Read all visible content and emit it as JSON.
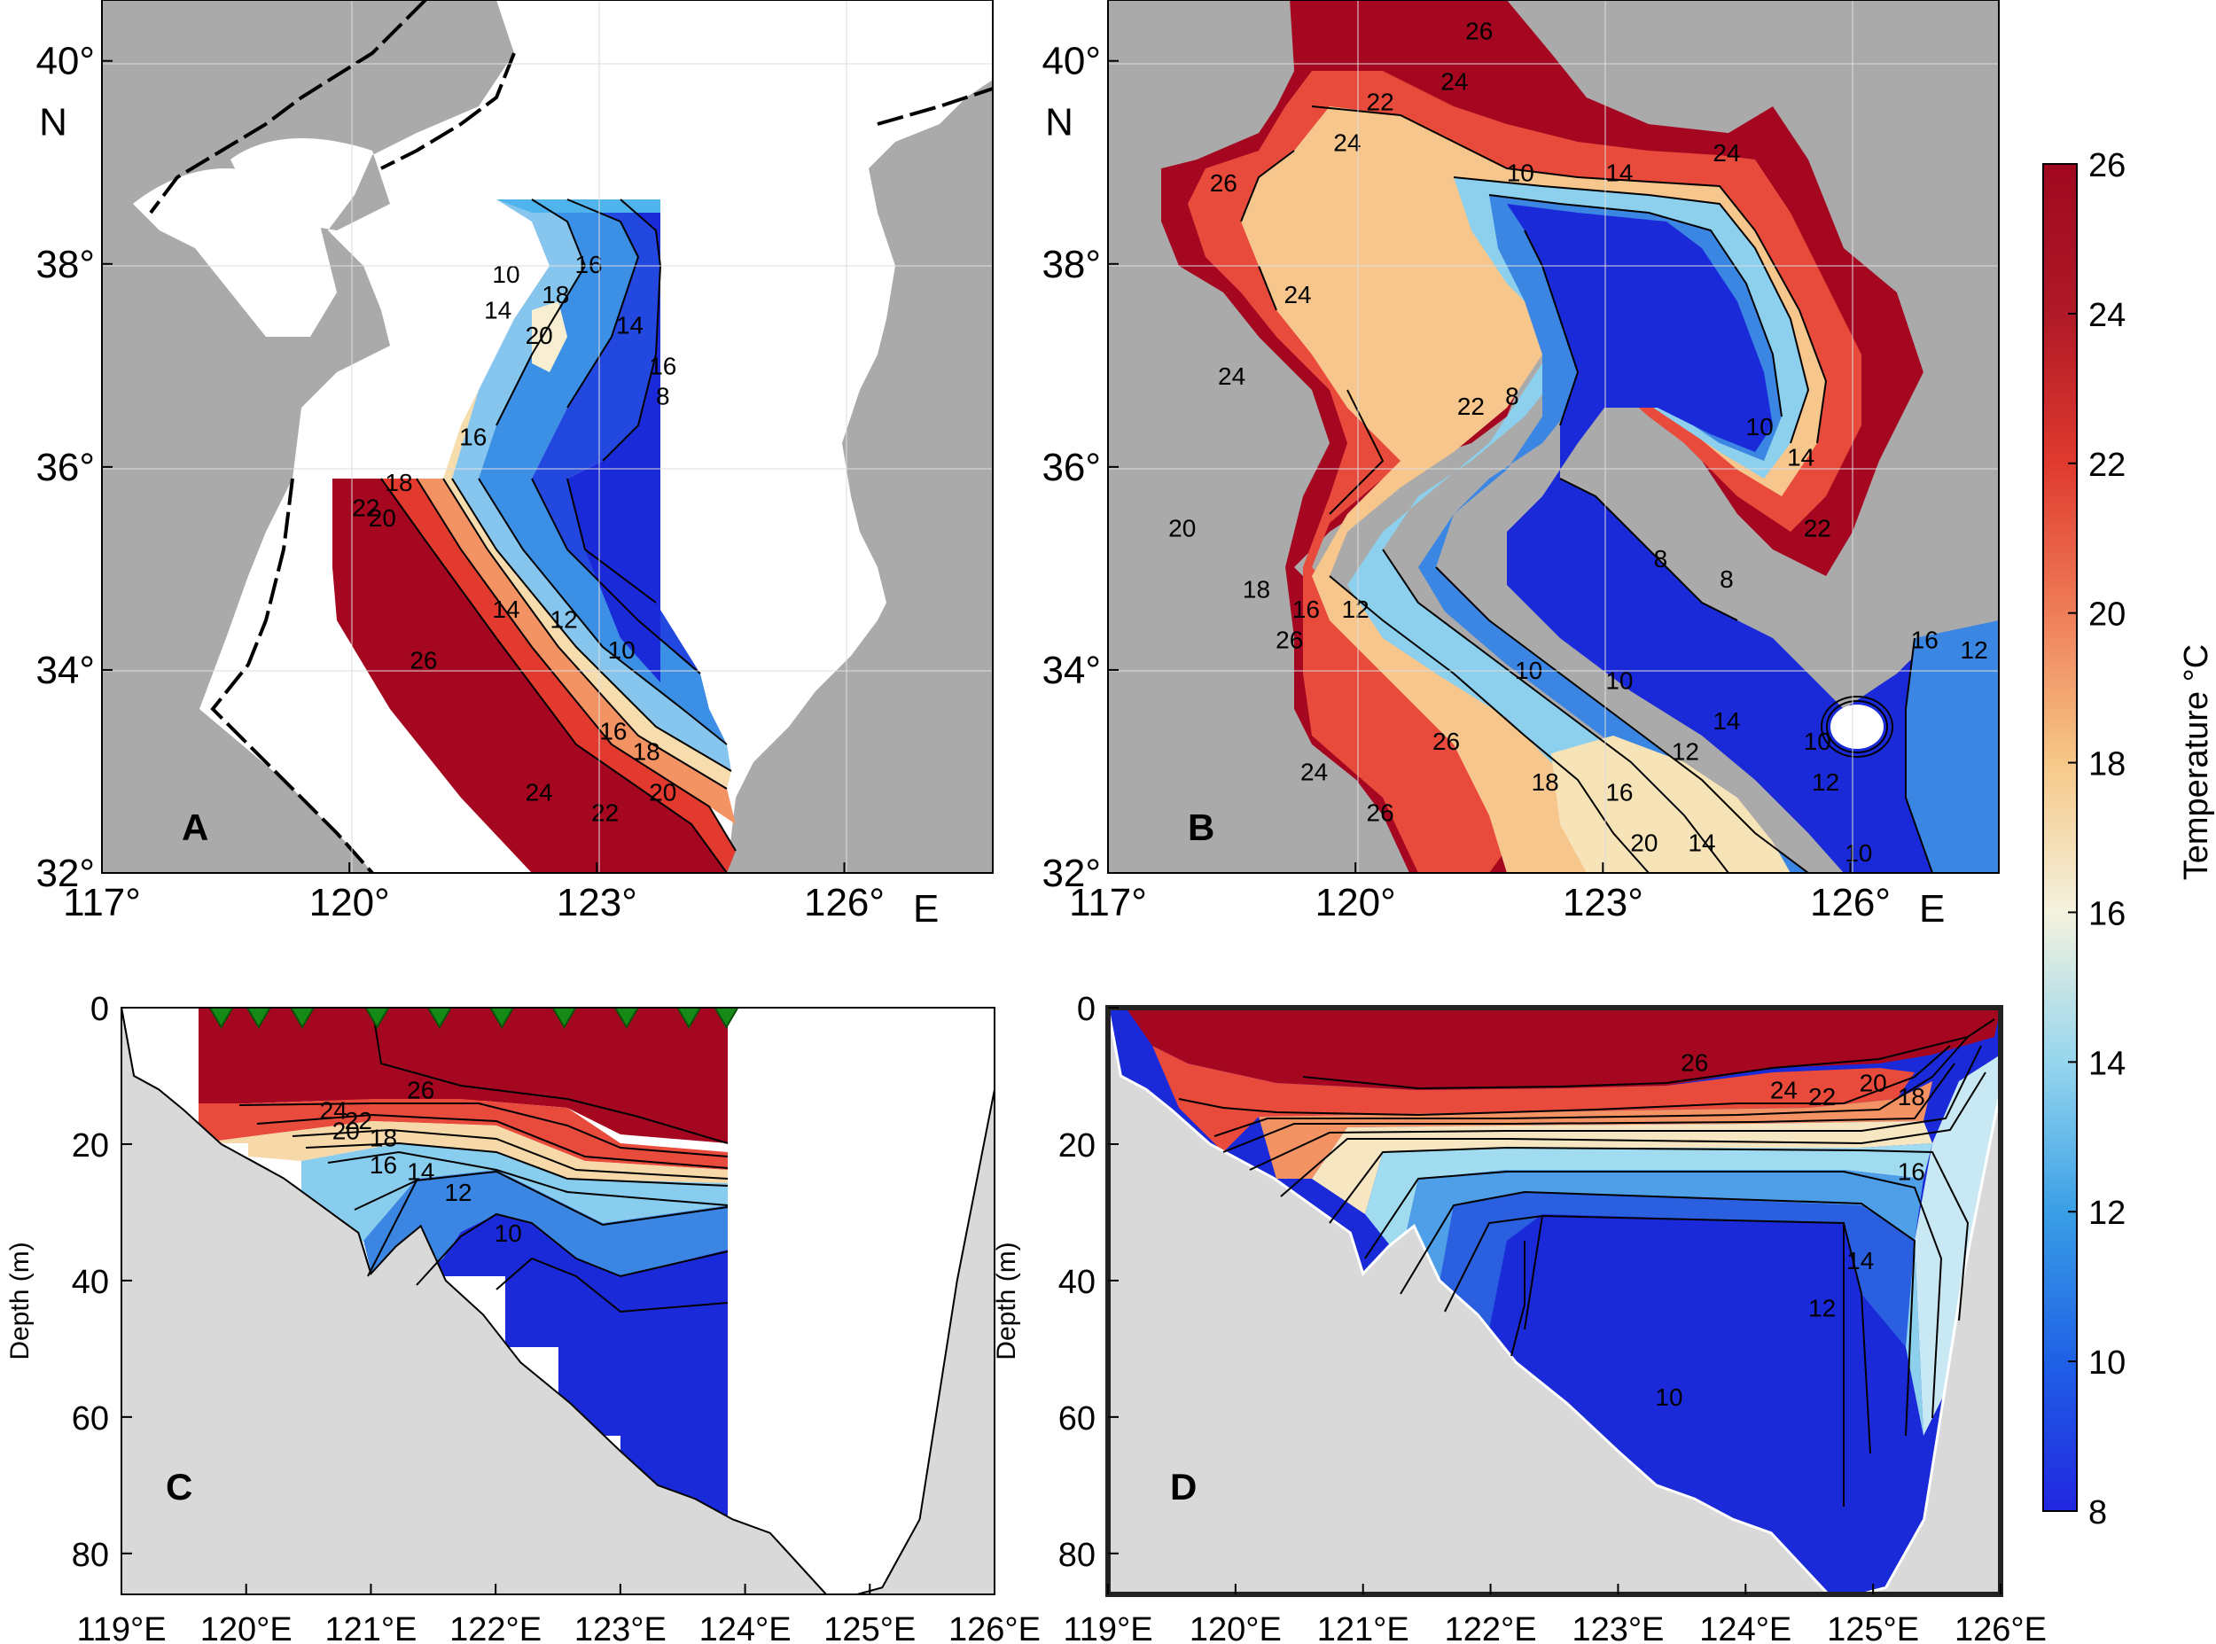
{
  "chart_data": [
    {
      "panel": "A",
      "type": "heatmap",
      "xticks": [
        "117°",
        "120°",
        "123°",
        "126°"
      ],
      "xtick_values": [
        117,
        120,
        123,
        126
      ],
      "xunit": "E",
      "yticks": [
        "32°",
        "34°",
        "36°",
        "38°",
        "40°"
      ],
      "ytick_values": [
        32,
        34,
        36,
        38,
        40
      ],
      "yunit": "N",
      "xlim": [
        117,
        127.8
      ],
      "ylim": [
        32,
        40.6
      ],
      "contour_labels": [
        {
          "label": "10",
          "lon": 121.9,
          "lat": 37.9
        },
        {
          "label": "14",
          "lon": 121.8,
          "lat": 37.55
        },
        {
          "label": "16",
          "lon": 122.9,
          "lat": 38.0
        },
        {
          "label": "18",
          "lon": 122.5,
          "lat": 37.7
        },
        {
          "label": "20",
          "lon": 122.3,
          "lat": 37.3
        },
        {
          "label": "14",
          "lon": 123.4,
          "lat": 37.4
        },
        {
          "label": "16",
          "lon": 123.8,
          "lat": 37.0
        },
        {
          "label": "8",
          "lon": 123.8,
          "lat": 36.7
        },
        {
          "label": "16",
          "lon": 121.5,
          "lat": 36.3
        },
        {
          "label": "18",
          "lon": 120.6,
          "lat": 35.85
        },
        {
          "label": "20",
          "lon": 120.4,
          "lat": 35.5
        },
        {
          "label": "22",
          "lon": 120.2,
          "lat": 35.6
        },
        {
          "label": "14",
          "lon": 121.9,
          "lat": 34.6
        },
        {
          "label": "12",
          "lon": 122.6,
          "lat": 34.5
        },
        {
          "label": "10",
          "lon": 123.3,
          "lat": 34.2
        },
        {
          "label": "26",
          "lon": 120.9,
          "lat": 34.1
        },
        {
          "label": "16",
          "lon": 123.2,
          "lat": 33.4
        },
        {
          "label": "18",
          "lon": 123.6,
          "lat": 33.2
        },
        {
          "label": "20",
          "lon": 123.8,
          "lat": 32.8
        },
        {
          "label": "22",
          "lon": 123.1,
          "lat": 32.6
        },
        {
          "label": "24",
          "lon": 122.3,
          "lat": 32.8
        }
      ]
    },
    {
      "panel": "B",
      "type": "heatmap",
      "xticks": [
        "117°",
        "120°",
        "123°",
        "126°"
      ],
      "xtick_values": [
        117,
        120,
        123,
        126
      ],
      "xunit": "E",
      "yticks": [
        "32°",
        "34°",
        "36°",
        "38°",
        "40°"
      ],
      "ytick_values": [
        32,
        34,
        36,
        38,
        40
      ],
      "yunit": "N",
      "xlim": [
        117,
        127.8
      ],
      "ylim": [
        32,
        40.6
      ],
      "contour_labels": [
        {
          "label": "26",
          "lon": 121.5,
          "lat": 40.3
        },
        {
          "label": "24",
          "lon": 121.2,
          "lat": 39.8
        },
        {
          "label": "22",
          "lon": 120.3,
          "lat": 39.6
        },
        {
          "label": "24",
          "lon": 119.9,
          "lat": 39.2
        },
        {
          "label": "26",
          "lon": 118.4,
          "lat": 38.8
        },
        {
          "label": "24",
          "lon": 119.3,
          "lat": 37.7
        },
        {
          "label": "24",
          "lon": 118.5,
          "lat": 36.9
        },
        {
          "label": "10",
          "lon": 122.0,
          "lat": 38.9
        },
        {
          "label": "14",
          "lon": 123.2,
          "lat": 38.9
        },
        {
          "label": "24",
          "lon": 124.5,
          "lat": 39.1
        },
        {
          "label": "22",
          "lon": 121.4,
          "lat": 36.6
        },
        {
          "label": "8",
          "lon": 121.9,
          "lat": 36.7
        },
        {
          "label": "10",
          "lon": 124.9,
          "lat": 36.4
        },
        {
          "label": "14",
          "lon": 125.4,
          "lat": 36.1
        },
        {
          "label": "22",
          "lon": 125.6,
          "lat": 35.4
        },
        {
          "label": "8",
          "lon": 123.7,
          "lat": 35.1
        },
        {
          "label": "8",
          "lon": 124.5,
          "lat": 34.9
        },
        {
          "label": "20",
          "lon": 117.9,
          "lat": 35.4
        },
        {
          "label": "18",
          "lon": 118.8,
          "lat": 34.8
        },
        {
          "label": "16",
          "lon": 119.4,
          "lat": 34.6
        },
        {
          "label": "12",
          "lon": 120.0,
          "lat": 34.6
        },
        {
          "label": "26",
          "lon": 119.2,
          "lat": 34.3
        },
        {
          "label": "10",
          "lon": 122.1,
          "lat": 34.0
        },
        {
          "label": "10",
          "lon": 123.2,
          "lat": 33.9
        },
        {
          "label": "26",
          "lon": 121.1,
          "lat": 33.3
        },
        {
          "label": "18",
          "lon": 122.3,
          "lat": 32.9
        },
        {
          "label": "16",
          "lon": 123.2,
          "lat": 32.8
        },
        {
          "label": "12",
          "lon": 124.0,
          "lat": 33.2
        },
        {
          "label": "14",
          "lon": 124.5,
          "lat": 33.5
        },
        {
          "label": "10",
          "lon": 125.6,
          "lat": 33.3
        },
        {
          "label": "12",
          "lon": 125.7,
          "lat": 32.9
        },
        {
          "label": "16",
          "lon": 126.9,
          "lat": 34.3
        },
        {
          "label": "12",
          "lon": 127.5,
          "lat": 34.2
        },
        {
          "label": "20",
          "lon": 123.5,
          "lat": 32.3
        },
        {
          "label": "14",
          "lon": 124.2,
          "lat": 32.3
        },
        {
          "label": "10",
          "lon": 126.1,
          "lat": 32.2
        },
        {
          "label": "24",
          "lon": 119.5,
          "lat": 33.0
        },
        {
          "label": "26",
          "lon": 120.3,
          "lat": 32.6
        }
      ]
    },
    {
      "panel": "C",
      "type": "heatmap",
      "xticks": [
        "119°E",
        "120°E",
        "121°E",
        "122°E",
        "123°E",
        "124°E",
        "125°E",
        "126°E"
      ],
      "xtick_values": [
        119,
        120,
        121,
        122,
        123,
        124,
        125,
        126
      ],
      "xlim": [
        119,
        126
      ],
      "ylabel": "Depth (m)",
      "yticks": [
        "0",
        "20",
        "40",
        "60",
        "80"
      ],
      "ytick_values": [
        0,
        20,
        40,
        60,
        80
      ],
      "ylim": [
        0,
        86
      ],
      "stations_lon": [
        119.8,
        120.1,
        120.45,
        121.05,
        121.55,
        122.05,
        122.55,
        123.05,
        123.55,
        123.85
      ],
      "bottom_profile": [
        [
          119,
          0
        ],
        [
          119.1,
          10
        ],
        [
          119.3,
          12
        ],
        [
          119.5,
          15
        ],
        [
          119.8,
          20
        ],
        [
          120.0,
          22
        ],
        [
          120.3,
          25
        ],
        [
          120.6,
          29
        ],
        [
          120.9,
          33
        ],
        [
          121.0,
          39
        ],
        [
          121.2,
          35
        ],
        [
          121.4,
          32
        ],
        [
          121.6,
          40
        ],
        [
          121.9,
          45
        ],
        [
          122.2,
          52
        ],
        [
          122.6,
          58
        ],
        [
          123.0,
          65
        ],
        [
          123.3,
          70
        ],
        [
          123.6,
          72
        ],
        [
          123.9,
          75
        ],
        [
          124.2,
          77
        ],
        [
          124.5,
          83
        ],
        [
          124.7,
          87
        ],
        [
          124.9,
          86
        ],
        [
          125.1,
          85
        ],
        [
          125.4,
          75
        ],
        [
          125.7,
          40
        ],
        [
          126,
          12
        ]
      ],
      "contour_labels": [
        {
          "label": "26",
          "lon": 121.4,
          "depth": 12
        },
        {
          "label": "24",
          "lon": 120.7,
          "depth": 15
        },
        {
          "label": "22",
          "lon": 120.9,
          "depth": 16.5
        },
        {
          "label": "20",
          "lon": 120.8,
          "depth": 18
        },
        {
          "label": "18",
          "lon": 121.1,
          "depth": 19
        },
        {
          "label": "16",
          "lon": 121.1,
          "depth": 23
        },
        {
          "label": "14",
          "lon": 121.4,
          "depth": 24
        },
        {
          "label": "12",
          "lon": 121.7,
          "depth": 27
        },
        {
          "label": "10",
          "lon": 122.1,
          "depth": 33
        }
      ]
    },
    {
      "panel": "D",
      "type": "heatmap",
      "xticks": [
        "119°E",
        "120°E",
        "121°E",
        "122°E",
        "123°E",
        "124°E",
        "125°E",
        "126°E"
      ],
      "xtick_values": [
        119,
        120,
        121,
        122,
        123,
        124,
        125,
        126
      ],
      "xlim": [
        119,
        126
      ],
      "ylabel": "Depth (m)",
      "yticks": [
        "0",
        "20",
        "40",
        "60",
        "80"
      ],
      "ytick_values": [
        0,
        20,
        40,
        60,
        80
      ],
      "ylim": [
        0,
        86
      ],
      "contour_labels": [
        {
          "label": "26",
          "lon": 123.6,
          "depth": 8
        },
        {
          "label": "24",
          "lon": 124.3,
          "depth": 12
        },
        {
          "label": "22",
          "lon": 124.6,
          "depth": 13
        },
        {
          "label": "20",
          "lon": 125.0,
          "depth": 11
        },
        {
          "label": "18",
          "lon": 125.3,
          "depth": 13
        },
        {
          "label": "16",
          "lon": 125.3,
          "depth": 24
        },
        {
          "label": "14",
          "lon": 124.9,
          "depth": 37
        },
        {
          "label": "12",
          "lon": 124.6,
          "depth": 44
        },
        {
          "label": "10",
          "lon": 123.4,
          "depth": 57
        }
      ]
    }
  ],
  "colorbar": {
    "label": "Temperature °C",
    "min": 8,
    "max": 26,
    "ticks": [
      "26",
      "24",
      "22",
      "20",
      "18",
      "16",
      "14",
      "12",
      "10",
      "8"
    ],
    "tick_values": [
      26,
      24,
      22,
      20,
      18,
      16,
      14,
      12,
      10,
      8
    ],
    "colors": [
      "#2226e0",
      "#1f61e6",
      "#3a9fe6",
      "#96d6ee",
      "#f4f2de",
      "#f6c888",
      "#ef7d58",
      "#df3a2e",
      "#b01927",
      "#a0071f"
    ]
  },
  "colors": {
    "land": "#aaaaaa",
    "section_bottom": "#d9d9d9",
    "station_marker": "#168a16"
  }
}
